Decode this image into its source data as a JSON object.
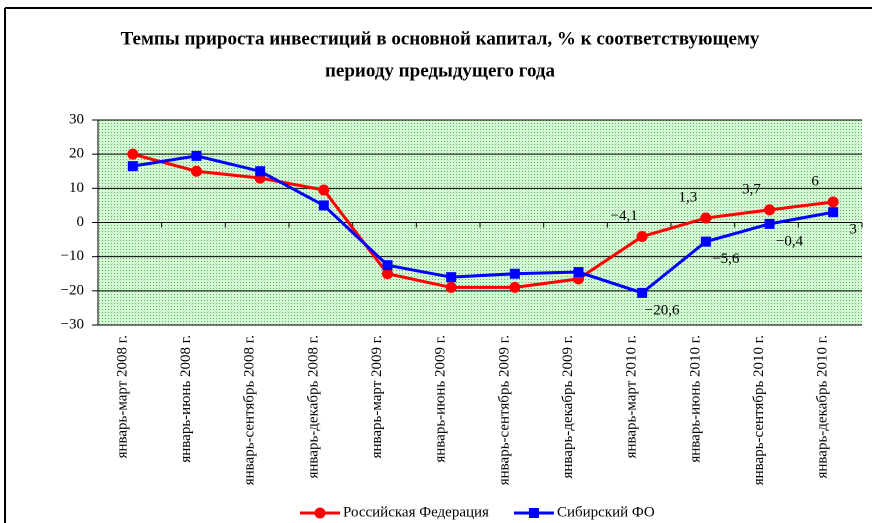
{
  "chart_data": {
    "type": "line",
    "title": [
      "Темпы прироста инвестиций в основной капитал, % к соответствующему",
      "периоду предыдущего года"
    ],
    "categories": [
      "январь-март 2008 г.",
      "январь-июнь 2008 г.",
      "январь-сентябрь 2008 г.",
      "январь-декабрь 2008 г.",
      "январь-март 2009 г.",
      "январь-июнь 2009 г.",
      "январь-сентябрь 2009 г.",
      "январь-декабрь 2009 г.",
      "январь-март 2010 г.",
      "январь-июнь 2010 г.",
      "январь-сентябрь 2010 г.",
      "январь-декабрь 2010 г."
    ],
    "series": [
      {
        "name": "Российская Федерация",
        "color": "#ff0000",
        "marker": "circle",
        "values": [
          20,
          15,
          13,
          9.5,
          -15,
          -19,
          -19,
          -16.5,
          -4.1,
          1.3,
          3.7,
          6
        ],
        "value_labels": [
          null,
          null,
          null,
          null,
          null,
          null,
          null,
          null,
          "−4,1",
          "1,3",
          "3,7",
          "6"
        ]
      },
      {
        "name": "Сибирский ФО",
        "color": "#0000ff",
        "marker": "square",
        "values": [
          16.5,
          19.5,
          15,
          5,
          -12.5,
          -16,
          -15,
          -14.5,
          -20.6,
          -5.6,
          -0.4,
          3
        ],
        "value_labels": [
          null,
          null,
          null,
          null,
          null,
          null,
          null,
          null,
          "−20,6",
          "−5,6",
          "−0,4",
          "3"
        ]
      }
    ],
    "ylim": [
      -30,
      30
    ],
    "yticks": [
      {
        "value": -30,
        "label": "−30"
      },
      {
        "value": -20,
        "label": "−20"
      },
      {
        "value": -10,
        "label": "−10"
      },
      0,
      10,
      20,
      30
    ],
    "grid": true,
    "legend": "bottom"
  }
}
